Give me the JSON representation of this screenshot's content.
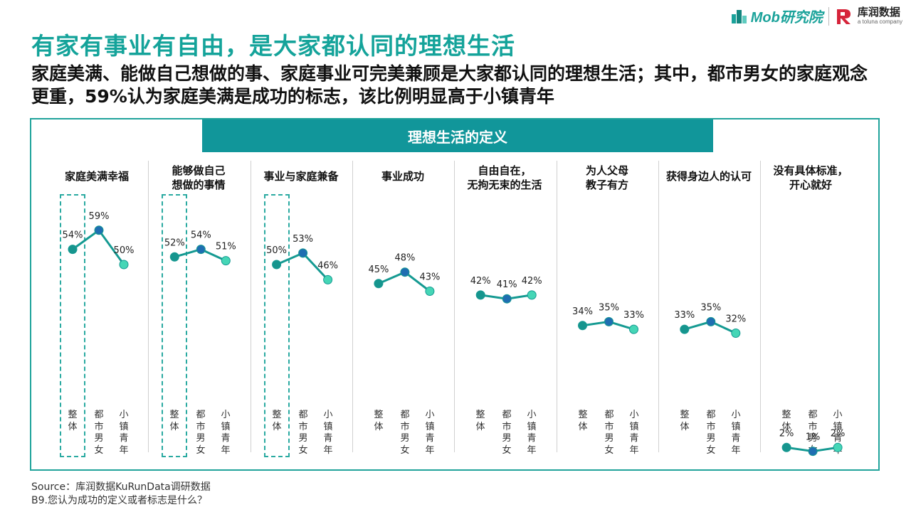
{
  "header": {
    "mob_logo_text": "Mob研究院",
    "kr_logo_cn": "库润数据",
    "kr_logo_en": "a toluna company"
  },
  "title": "有家有事业有自由，是大家都认同的理想生活",
  "subtitle": "家庭美满、能做自己想做的事、家庭事业可完美兼顾是大家都认同的理想生活；其中，都市男女的家庭观念更重，59%认为家庭美满是成功的标志，该比例明显高于小镇青年",
  "chart_band_title": "理想生活的定义",
  "source": {
    "line1": "Source：库润数据KuRunData调研数据",
    "line2": "B9.您认为成功的定义或者标志是什么？"
  },
  "chart_data": {
    "type": "line",
    "categories": [
      "整体",
      "都市男女",
      "小镇青年"
    ],
    "panels": [
      {
        "title": "家庭美满幸福",
        "values": [
          54,
          59,
          50
        ],
        "labels": [
          "54%",
          "59%",
          "50%"
        ],
        "highlight_first": true
      },
      {
        "title": "能够做自己想做的事情",
        "values": [
          52,
          54,
          51
        ],
        "labels": [
          "52%",
          "54%",
          "51%"
        ],
        "highlight_first": true
      },
      {
        "title": "事业与家庭兼备",
        "values": [
          50,
          53,
          46
        ],
        "labels": [
          "50%",
          "53%",
          "46%"
        ],
        "highlight_first": true
      },
      {
        "title": "事业成功",
        "values": [
          45,
          48,
          43
        ],
        "labels": [
          "45%",
          "48%",
          "43%"
        ],
        "highlight_first": false
      },
      {
        "title": "自由自在，无拘无束的生活",
        "values": [
          42,
          41,
          42
        ],
        "labels": [
          "42%",
          "41%",
          "42%"
        ],
        "highlight_first": false
      },
      {
        "title": "为人父母教子有方",
        "values": [
          34,
          35,
          33
        ],
        "labels": [
          "34%",
          "35%",
          "33%"
        ],
        "highlight_first": false
      },
      {
        "title": "获得身边人的认可",
        "values": [
          33,
          35,
          32
        ],
        "labels": [
          "33%",
          "35%",
          "32%"
        ],
        "highlight_first": false
      },
      {
        "title": "没有具体标准，开心就好",
        "values": [
          2,
          1,
          2
        ],
        "labels": [
          "2%",
          "1%",
          "2%"
        ],
        "highlight_first": false
      }
    ],
    "title_lines": [
      [
        "家庭美满幸福"
      ],
      [
        "能够做自己",
        "想做的事情"
      ],
      [
        "事业与家庭兼备"
      ],
      [
        "事业成功"
      ],
      [
        "自由自在，",
        "无拘无束的生活"
      ],
      [
        "为人父母",
        "教子有方"
      ],
      [
        "获得身边人的认可"
      ],
      [
        "没有具体标准，",
        "开心就好"
      ]
    ],
    "colors": {
      "overall": "#16958e",
      "urban": "#1f6eb1",
      "town": "#45d6b6",
      "line": "#159a92",
      "accent": "#1aa29a"
    },
    "y_unit": "%",
    "grid": false,
    "legend": "none"
  }
}
